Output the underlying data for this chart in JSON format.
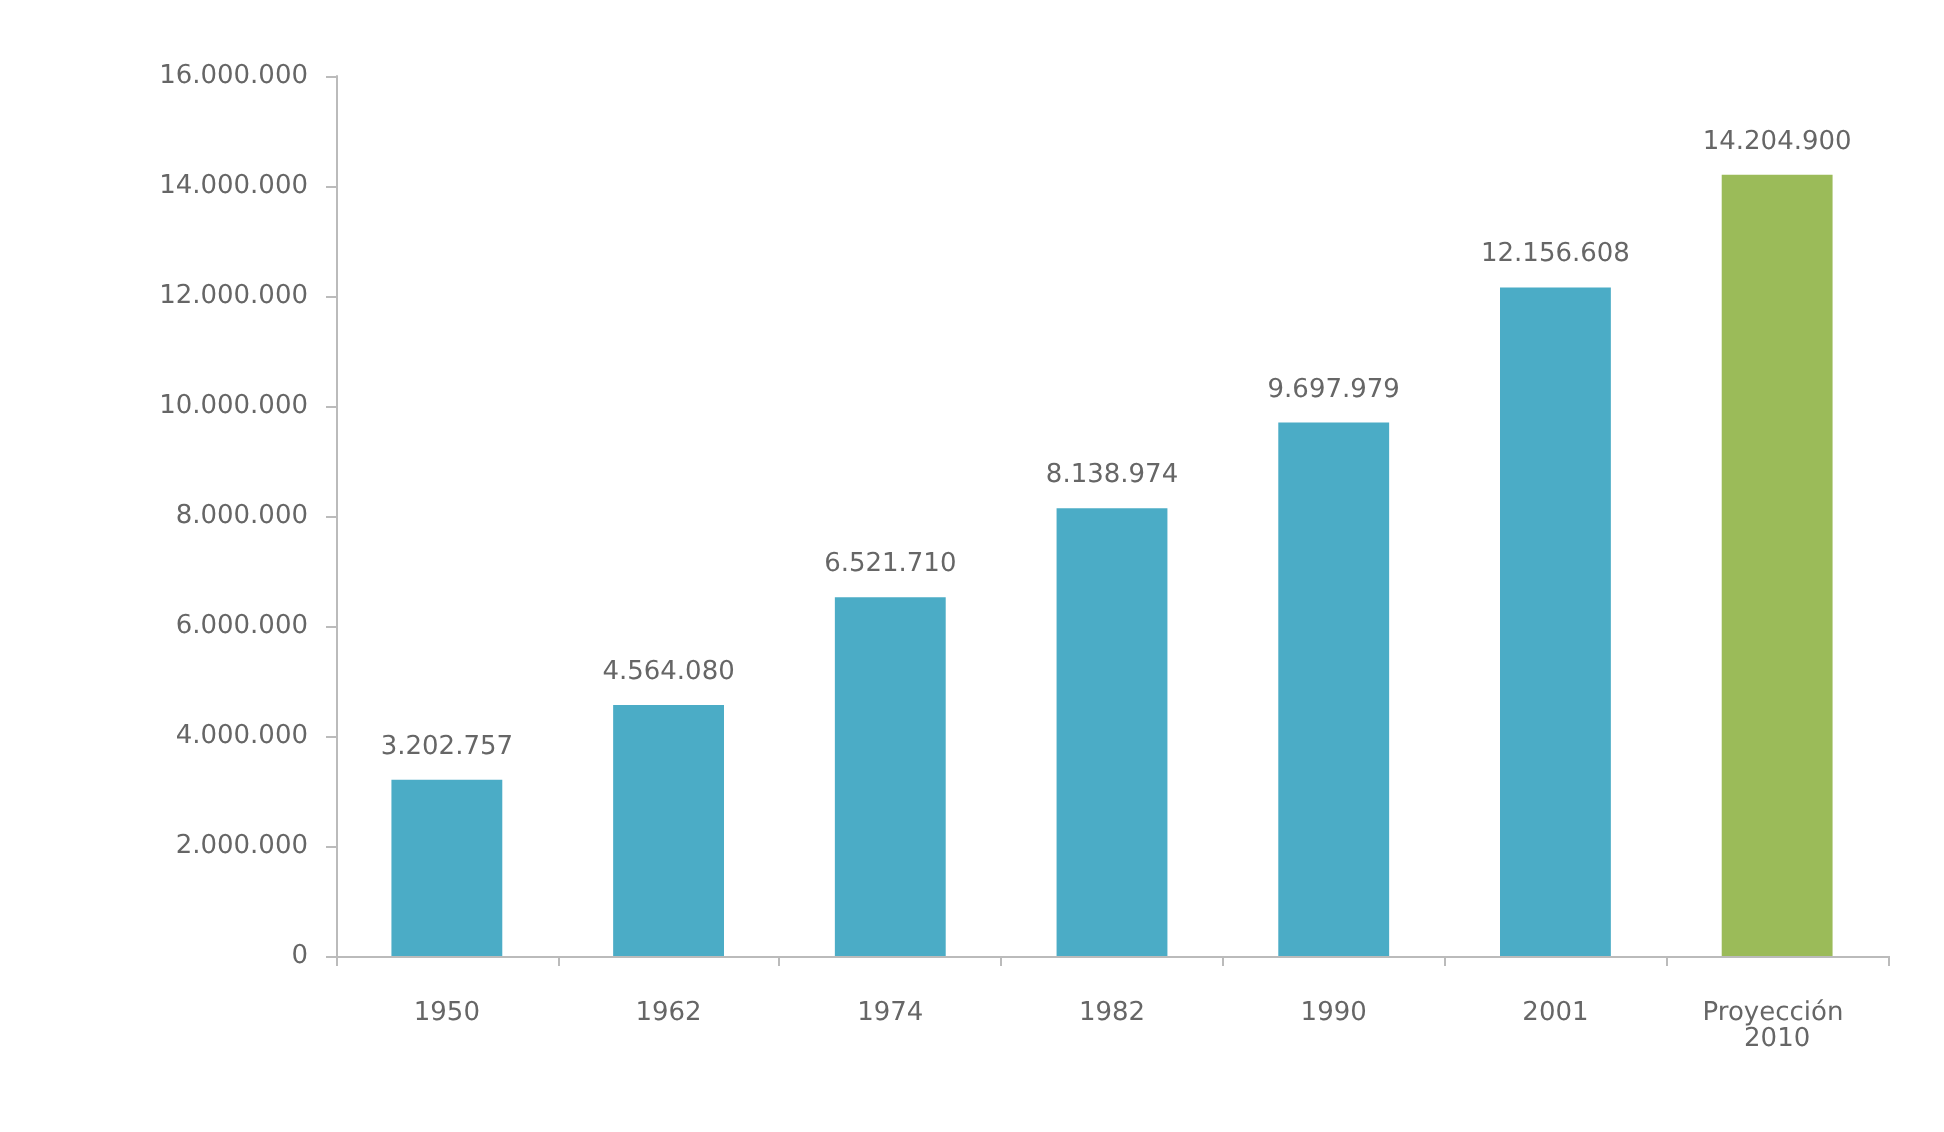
{
  "chart_data": {
    "type": "bar",
    "categories": [
      "1950",
      "1962",
      "1974",
      "1982",
      "1990",
      "2001",
      "Proyección 2010"
    ],
    "values": [
      3202757,
      4564080,
      6521710,
      8138974,
      9697979,
      12156608,
      14204900
    ],
    "colors": [
      "#4bacc6",
      "#4bacc6",
      "#4bacc6",
      "#4bacc6",
      "#4bacc6",
      "#4bacc6",
      "#9bbb59"
    ],
    "value_labels": [
      "3.202.757",
      "4.564.080",
      "6.521.710",
      "8.138.974",
      "9.697.979",
      "12.156.608",
      "14.204.900"
    ],
    "ylim": [
      0,
      16000000
    ],
    "yticks": [
      {
        "value": 0,
        "label": "0"
      },
      {
        "value": 2000000,
        "label": "2.000.000"
      },
      {
        "value": 4000000,
        "label": "4.000.000"
      },
      {
        "value": 6000000,
        "label": "6.000.000"
      },
      {
        "value": 8000000,
        "label": "8.000.000"
      },
      {
        "value": 10000000,
        "label": "10.000.000"
      },
      {
        "value": 12000000,
        "label": "12.000.000"
      },
      {
        "value": 14000000,
        "label": "14.000.000"
      },
      {
        "value": 16000000,
        "label": "16.000.000"
      }
    ],
    "grid": false
  }
}
